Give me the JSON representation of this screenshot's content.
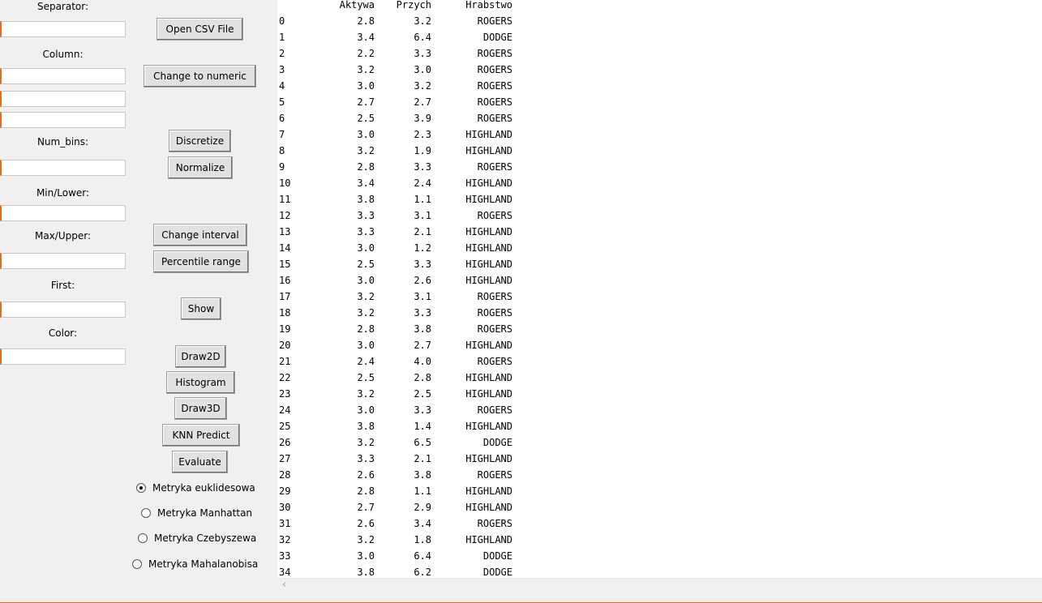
{
  "labels": {
    "separator": "Separator:",
    "column": "Column:",
    "num_bins": "Num_bins:",
    "min_lower": "Min/Lower:",
    "max_upper": "Max/Upper:",
    "first": "First:",
    "color": "Color:"
  },
  "inputs": {
    "separator": "",
    "column_1": "",
    "column_2": "",
    "column_3": "",
    "num_bins": "",
    "min_lower": "",
    "max_upper": "",
    "first": "",
    "color": ""
  },
  "buttons": {
    "open_csv": "Open CSV File",
    "change_numeric": "Change to numeric",
    "discretize": "Discretize",
    "normalize": "Normalize",
    "change_interval": "Change interval",
    "percentile_range": "Percentile range",
    "show": "Show",
    "draw2d": "Draw2D",
    "histogram": "Histogram",
    "draw3d": "Draw3D",
    "knn_predict": "KNN Predict",
    "evaluate": "Evaluate"
  },
  "metrics": [
    {
      "label": "Metryka euklidesowa",
      "checked": true
    },
    {
      "label": "Metryka Manhattan",
      "checked": false
    },
    {
      "label": "Metryka Czebyszewa",
      "checked": false
    },
    {
      "label": "Metryka Mahalanobisa",
      "checked": false
    }
  ],
  "table": {
    "columns": [
      "Aktywa",
      "Przych",
      "Hrabstwo"
    ],
    "rows": [
      [
        "0",
        "2.8",
        "3.2",
        "ROGERS"
      ],
      [
        "1",
        "3.4",
        "6.4",
        "DODGE"
      ],
      [
        "2",
        "2.2",
        "3.3",
        "ROGERS"
      ],
      [
        "3",
        "3.2",
        "3.0",
        "ROGERS"
      ],
      [
        "4",
        "3.0",
        "3.2",
        "ROGERS"
      ],
      [
        "5",
        "2.7",
        "2.7",
        "ROGERS"
      ],
      [
        "6",
        "2.5",
        "3.9",
        "ROGERS"
      ],
      [
        "7",
        "3.0",
        "2.3",
        "HIGHLAND"
      ],
      [
        "8",
        "3.2",
        "1.9",
        "HIGHLAND"
      ],
      [
        "9",
        "2.8",
        "3.3",
        "ROGERS"
      ],
      [
        "10",
        "3.4",
        "2.4",
        "HIGHLAND"
      ],
      [
        "11",
        "3.8",
        "1.1",
        "HIGHLAND"
      ],
      [
        "12",
        "3.3",
        "3.1",
        "ROGERS"
      ],
      [
        "13",
        "3.3",
        "2.1",
        "HIGHLAND"
      ],
      [
        "14",
        "3.0",
        "1.2",
        "HIGHLAND"
      ],
      [
        "15",
        "2.5",
        "3.3",
        "HIGHLAND"
      ],
      [
        "16",
        "3.0",
        "2.6",
        "HIGHLAND"
      ],
      [
        "17",
        "3.2",
        "3.1",
        "ROGERS"
      ],
      [
        "18",
        "3.2",
        "3.3",
        "ROGERS"
      ],
      [
        "19",
        "2.8",
        "3.8",
        "ROGERS"
      ],
      [
        "20",
        "3.0",
        "2.7",
        "HIGHLAND"
      ],
      [
        "21",
        "2.4",
        "4.0",
        "ROGERS"
      ],
      [
        "22",
        "2.5",
        "2.8",
        "HIGHLAND"
      ],
      [
        "23",
        "3.2",
        "2.5",
        "HIGHLAND"
      ],
      [
        "24",
        "3.0",
        "3.3",
        "ROGERS"
      ],
      [
        "25",
        "3.8",
        "1.4",
        "HIGHLAND"
      ],
      [
        "26",
        "3.2",
        "6.5",
        "DODGE"
      ],
      [
        "27",
        "3.3",
        "2.1",
        "HIGHLAND"
      ],
      [
        "28",
        "2.6",
        "3.8",
        "ROGERS"
      ],
      [
        "29",
        "2.8",
        "1.1",
        "HIGHLAND"
      ],
      [
        "30",
        "2.7",
        "2.9",
        "HIGHLAND"
      ],
      [
        "31",
        "2.6",
        "3.4",
        "ROGERS"
      ],
      [
        "32",
        "3.2",
        "1.8",
        "HIGHLAND"
      ],
      [
        "33",
        "3.0",
        "6.4",
        "DODGE"
      ],
      [
        "34",
        "3.8",
        "6.2",
        "DODGE"
      ]
    ]
  },
  "scrollbar": {
    "left_arrow_icon": "chevron-left-icon"
  },
  "colors": {
    "entry_accent": "#e07020",
    "button_face": "#e1e1e1",
    "window_bg": "#f0f0f0"
  }
}
